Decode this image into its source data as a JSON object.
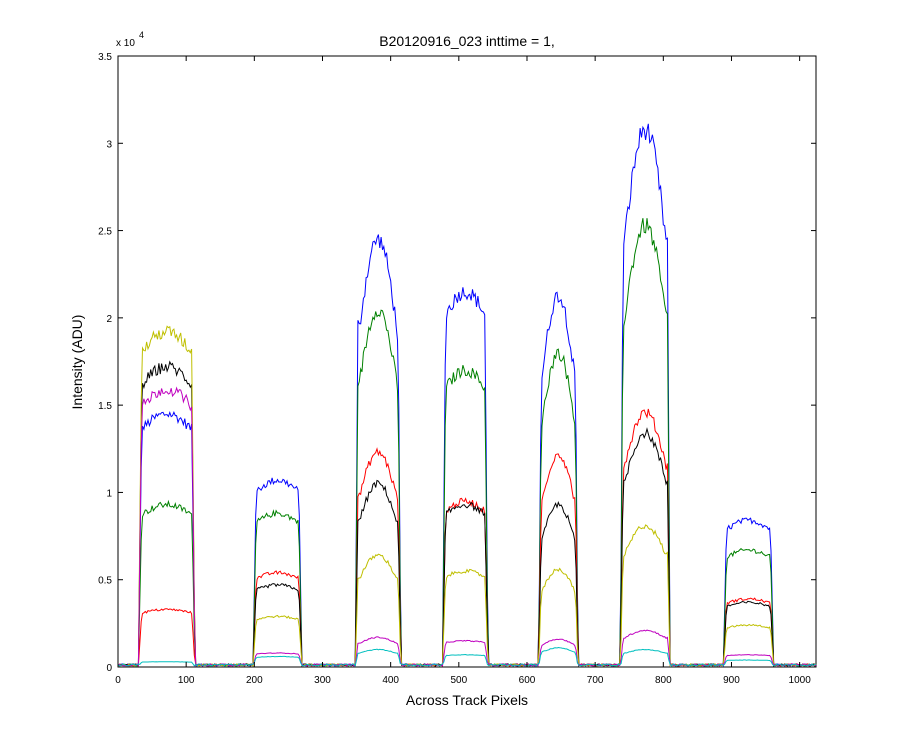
{
  "chart_data": {
    "type": "line",
    "title": "B20120916_023 inttime = 1,",
    "xlabel": "Across Track Pixels",
    "ylabel": "Intensity (ADU)",
    "y_multiplier_label": "x 10",
    "y_multiplier_exponent": "4",
    "xlim": [
      0,
      1024
    ],
    "ylim": [
      0,
      35000
    ],
    "x_ticks": [
      0,
      100,
      200,
      300,
      400,
      500,
      600,
      700,
      800,
      900,
      1000
    ],
    "y_ticks": [
      0,
      5000,
      10000,
      15000,
      20000,
      25000,
      30000,
      35000
    ],
    "y_tick_labels": [
      "0",
      "0.5",
      "1",
      "1.5",
      "2",
      "2.5",
      "3",
      "3.5"
    ],
    "grid": false,
    "legend": "none",
    "segments": [
      {
        "start": 35,
        "end": 108,
        "shape": "flat"
      },
      {
        "start": 203,
        "end": 265,
        "shape": "flat"
      },
      {
        "start": 353,
        "end": 410,
        "shape": "peak"
      },
      {
        "start": 481,
        "end": 538,
        "shape": "flat"
      },
      {
        "start": 622,
        "end": 670,
        "shape": "peak"
      },
      {
        "start": 742,
        "end": 805,
        "shape": "peak"
      },
      {
        "start": 893,
        "end": 957,
        "shape": "flat"
      }
    ],
    "series": [
      {
        "color": "#0000ff",
        "levels": [
          14500,
          10700,
          24500,
          21500,
          21300,
          30800,
          8400
        ]
      },
      {
        "color": "#008000",
        "levels": [
          9300,
          8800,
          20500,
          17000,
          18000,
          25300,
          6700
        ]
      },
      {
        "color": "#ff0000",
        "levels": [
          3300,
          5400,
          12300,
          9500,
          12200,
          14600,
          3900
        ]
      },
      {
        "color": "#000000",
        "levels": [
          17200,
          4700,
          10500,
          9300,
          9300,
          13400,
          3700
        ]
      },
      {
        "color": "#bfbf00",
        "levels": [
          19200,
          2900,
          6400,
          5500,
          5600,
          8100,
          2400
        ]
      },
      {
        "color": "#bf00bf",
        "levels": [
          15900,
          800,
          1700,
          1500,
          1600,
          2100,
          700
        ]
      },
      {
        "color": "#00bfbf",
        "levels": [
          300,
          600,
          1000,
          700,
          1100,
          1000,
          400
        ]
      }
    ]
  }
}
